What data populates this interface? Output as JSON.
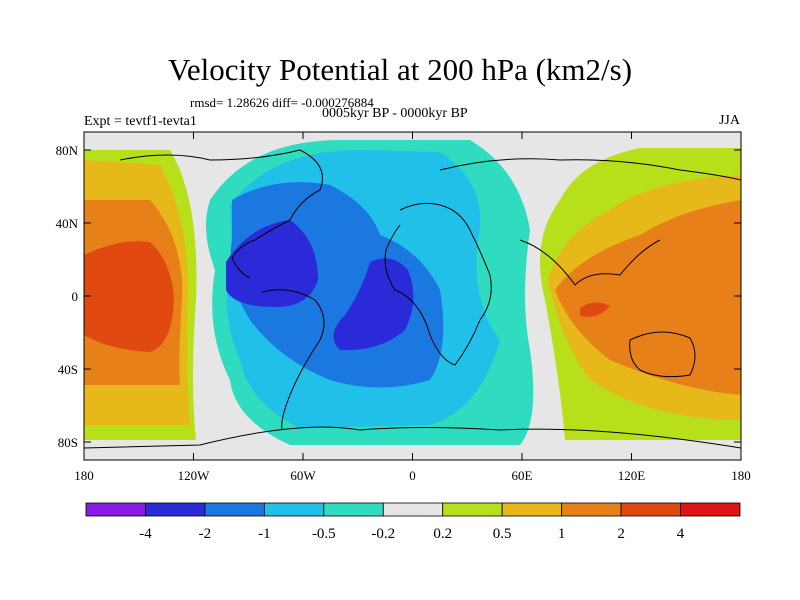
{
  "title": "Velocity Potential at 200 hPa (km2/s)",
  "stats_line": "rmsd= 1.28626 diff= -0.000276884",
  "period_line": "0005kyr BP - 0000kyr BP",
  "left_label": "Expt = tevtf1-tevta1",
  "right_label": "JJA",
  "lat_ticks": [
    "80N",
    "40N",
    "0",
    "40S",
    "80S"
  ],
  "lon_ticks": [
    "180",
    "120W",
    "60W",
    "0",
    "60E",
    "120E",
    "180"
  ],
  "colorbar": {
    "colors": [
      "#8a1ae6",
      "#2a2ad8",
      "#1a78e0",
      "#20c0e8",
      "#30dcc0",
      "#e6e6e6",
      "#b8e01a",
      "#e6b81a",
      "#e8801a",
      "#e04a10",
      "#e01414"
    ],
    "labels": [
      "-4",
      "-2",
      "-1",
      "-0.5",
      "-0.2",
      "0.2",
      "0.5",
      "1",
      "2",
      "4"
    ]
  },
  "map_fill_colors": {
    "ocean_land_bg": "#e6e6e6",
    "neg_02": "#30dcc0",
    "neg_05": "#20c0e8",
    "neg_1": "#1a78e0",
    "neg_2": "#2a2ad8",
    "pos_02": "#b8e01a",
    "pos_05": "#e6b81a",
    "pos_1": "#e8801a",
    "pos_2": "#e04a10"
  }
}
